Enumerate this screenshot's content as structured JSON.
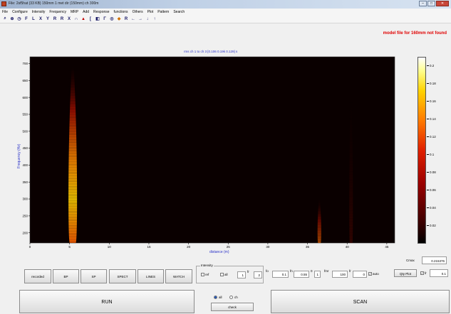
{
  "window": {
    "title": "File: 2sf5hat (33 KB) 150mm 1 met dir (150mm) ch 300m",
    "buttons": {
      "minimize": "–",
      "maximize": "□",
      "close": "✕"
    }
  },
  "menu": [
    "File",
    "Configure",
    "Intensity",
    "Frequency",
    "MRP",
    "Add",
    "Response",
    "functions",
    "Others",
    "Plot",
    "Pattern",
    "Search"
  ],
  "toolbar": {
    "glyphs": [
      "⌕",
      "⊕",
      "◷",
      "F",
      "L",
      "X",
      "Y",
      "R",
      "R",
      "X",
      "∩",
      "▲",
      "[",
      "◧",
      "Γ",
      "◎",
      "◆",
      "R",
      "←",
      "→",
      "↓",
      "↑"
    ]
  },
  "warning": "model file for 160mm not found",
  "plot": {
    "title": "rms ch 1 to ch 3   [0.106     0.19k     0.129] s",
    "xlabel": "distance (m)",
    "ylabel": "Frequency (Hz)"
  },
  "chart_data": {
    "type": "heatmap",
    "title": "rms ch 1 to ch 3   [0.106     0.19k     0.129] s",
    "xlabel": "distance (m)",
    "ylabel": "Frequency (Hz)",
    "xlim": [
      0,
      46
    ],
    "ylim": [
      170,
      720
    ],
    "xticks": [
      0,
      5,
      10,
      15,
      20,
      25,
      30,
      35,
      40,
      45
    ],
    "yticks": [
      200,
      250,
      300,
      350,
      400,
      450,
      500,
      550,
      600,
      650,
      700
    ],
    "colorbar": {
      "ticks": [
        0.2,
        0.18,
        0.16,
        0.14,
        0.12,
        0.1,
        0.08,
        0.06,
        0.04,
        0.02
      ],
      "range": [
        0,
        0.21
      ]
    },
    "hotspots": [
      {
        "x": 5.4,
        "y_range": [
          170,
          690
        ],
        "peak": 0.2
      },
      {
        "x": 36.5,
        "y_range": [
          170,
          300
        ],
        "peak": 0.08
      },
      {
        "x": 40.5,
        "y_range": [
          170,
          600
        ],
        "peak": 0.03
      }
    ]
  },
  "controls": {
    "buttons": [
      "recorded",
      "BP",
      "SP",
      "SPECT",
      "LINES",
      "WATCH"
    ],
    "intensity_group": {
      "title": "Intensity",
      "ref": "ref",
      "all": "all",
      "fr_label": "fr",
      "fr_value": "1",
      "to_value": "2",
      "fo_label": "fo",
      "fo_value": "0.1",
      "fn_label": "fn",
      "fn_value": "0.55",
      "zero_label": "0",
      "zero_value": "1",
      "fmr_label": "fmr",
      "fmr_value": "100",
      "fs_label": "fr",
      "fs_value": "0",
      "auto": "auto"
    },
    "cmax_label": "Cmax",
    "cmax_value": "0.215376",
    "qty_plot": "Qty Plot",
    "fr_label": "fr",
    "fr_value": "0.1",
    "run": "RUN",
    "scan": "SCAN",
    "radio_all": "all",
    "radio_ch": "ch",
    "check": "check"
  }
}
